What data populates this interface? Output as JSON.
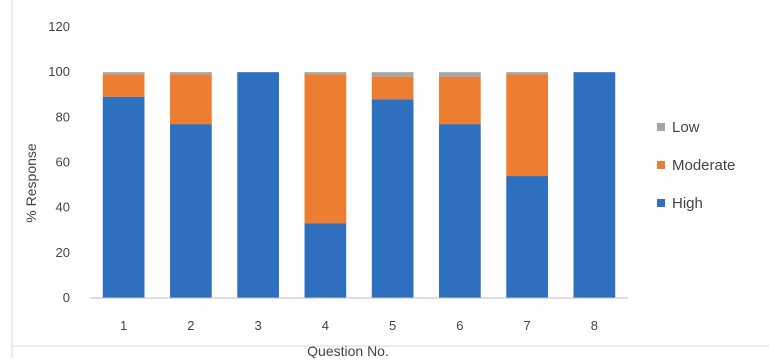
{
  "chart_data": {
    "type": "bar",
    "stacked": true,
    "title": "",
    "xlabel": "Question No.",
    "ylabel": "% Response",
    "ylim": [
      0,
      120
    ],
    "yticks": [
      0,
      20,
      40,
      60,
      80,
      100,
      120
    ],
    "categories": [
      "1",
      "2",
      "3",
      "4",
      "5",
      "6",
      "7",
      "8"
    ],
    "series": [
      {
        "name": "High",
        "color": "#2e6fbf",
        "values": [
          89,
          77,
          100,
          33,
          88,
          77,
          54,
          100
        ]
      },
      {
        "name": "Moderate",
        "color": "#ed7d31",
        "values": [
          10,
          22,
          0,
          66,
          10,
          21,
          45,
          0
        ]
      },
      {
        "name": "Low",
        "color": "#a5a5a5",
        "values": [
          1,
          1,
          0,
          1,
          2,
          2,
          1,
          0
        ]
      }
    ],
    "legend_order": [
      "Low",
      "Moderate",
      "High"
    ],
    "legend_position": "right",
    "grid": false
  }
}
